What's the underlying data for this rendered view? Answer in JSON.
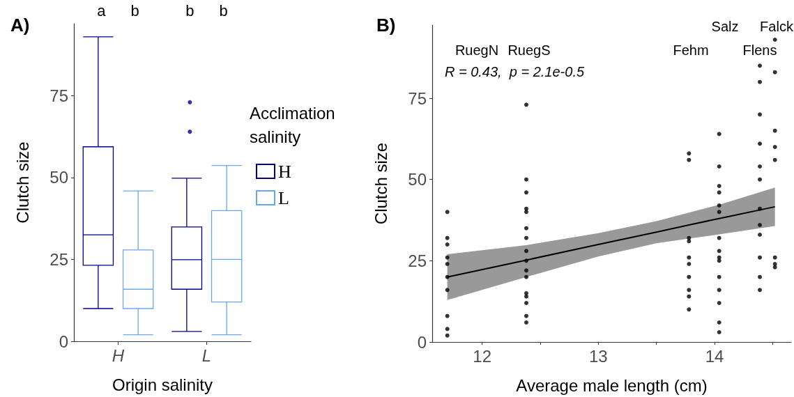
{
  "chart_data": [
    {
      "type": "box",
      "title": "A)",
      "xlabel": "Origin salinity",
      "ylabel": "Clutch size",
      "legend_title": "Acclimation salinity",
      "legend": "right",
      "grid": false,
      "categories": [
        "H",
        "L"
      ],
      "ylim": [
        0,
        97
      ],
      "yticks": [
        0,
        25,
        50,
        75
      ],
      "annotations": [
        "a",
        "b",
        "b",
        "b"
      ],
      "series": [
        {
          "name": "H",
          "color": "#00008b",
          "boxes": [
            {
              "low": 10,
              "q1": 23.2,
              "median": 32.5,
              "q3": 59.4,
              "high": 93
            },
            {
              "low": 3,
              "q1": 15.9,
              "median": 24.9,
              "q3": 34.9,
              "high": 49.8,
              "outliers": [
                73,
                64
              ]
            }
          ]
        },
        {
          "name": "L",
          "color": "#6ca6f0",
          "boxes": [
            {
              "low": 2,
              "q1": 10,
              "median": 15.9,
              "q3": 27.9,
              "high": 45.9
            },
            {
              "low": 2,
              "q1": 12,
              "median": 25,
              "q3": 39.9,
              "high": 53.7
            }
          ]
        }
      ]
    },
    {
      "type": "scatter",
      "title": "B)",
      "xlabel": "Average male length (cm)",
      "ylabel": "Clutch size",
      "grid": false,
      "xlim": [
        11.57,
        14.66
      ],
      "xticks": [
        12,
        {
          "value": 12.5,
          "label": null
        },
        13,
        {
          "value": 13.5,
          "label": null
        },
        14,
        {
          "value": 14.5,
          "label": null
        }
      ],
      "ylim": [
        0,
        97.5
      ],
      "yticks": [
        0,
        25,
        50,
        75
      ],
      "annotations": [
        "R = 0.43,  p = 2.1e-0.5",
        "RuegN",
        "RuegS",
        "Fehm",
        "Salz",
        "Flens",
        "Falck"
      ],
      "series": [
        {
          "type": "scatter",
          "color": "#000000",
          "marker": "circle",
          "x": [
            11.7,
            11.7,
            11.7,
            11.7,
            11.7,
            11.7,
            11.7,
            11.7,
            11.7,
            11.7,
            12.38,
            12.38,
            12.38,
            12.38,
            12.38,
            12.38,
            12.38,
            12.38,
            12.38,
            12.38,
            12.38,
            12.38,
            12.38,
            12.38,
            12.38,
            12.38,
            13.78,
            13.78,
            13.78,
            13.78,
            13.78,
            13.78,
            13.78,
            13.78,
            13.78,
            13.78,
            14.04,
            14.04,
            14.04,
            14.04,
            14.04,
            14.04,
            14.04,
            14.04,
            14.04,
            14.04,
            14.04,
            14.04,
            14.04,
            14.04,
            14.04,
            14.39,
            14.39,
            14.39,
            14.39,
            14.39,
            14.39,
            14.39,
            14.39,
            14.39,
            14.39,
            14.39,
            14.39,
            14.52,
            14.52,
            14.52,
            14.52,
            14.52,
            14.52,
            14.52,
            14.52
          ],
          "values": [
            40,
            32,
            30,
            26,
            24,
            20,
            16,
            8,
            4,
            2,
            73,
            50,
            46,
            41,
            40,
            35,
            32,
            28,
            25,
            22,
            20,
            15,
            14,
            12,
            8,
            6,
            58,
            56,
            32,
            31,
            26,
            24,
            20,
            16,
            14,
            10,
            64,
            54,
            48,
            46,
            42,
            40,
            32,
            28,
            26,
            25,
            20,
            16,
            12,
            6,
            3,
            85,
            80,
            70,
            61,
            54,
            50,
            41,
            36,
            33,
            26,
            20,
            16,
            93,
            83,
            65,
            60,
            56,
            26,
            24,
            23
          ]
        },
        {
          "type": "line",
          "color": "#000000",
          "line_style": "solid",
          "x": [
            11.7,
            12.38,
            13.0,
            13.5,
            13.78,
            14.04,
            14.52
          ],
          "values": [
            20.0,
            25.2,
            30.0,
            33.8,
            36.0,
            38.0,
            41.6
          ],
          "lower": [
            12.9,
            20.0,
            26.3,
            30.4,
            31.8,
            33.1,
            35.7
          ],
          "upper": [
            27.0,
            29.8,
            33.5,
            37.2,
            39.8,
            42.2,
            47.5
          ]
        }
      ]
    }
  ]
}
